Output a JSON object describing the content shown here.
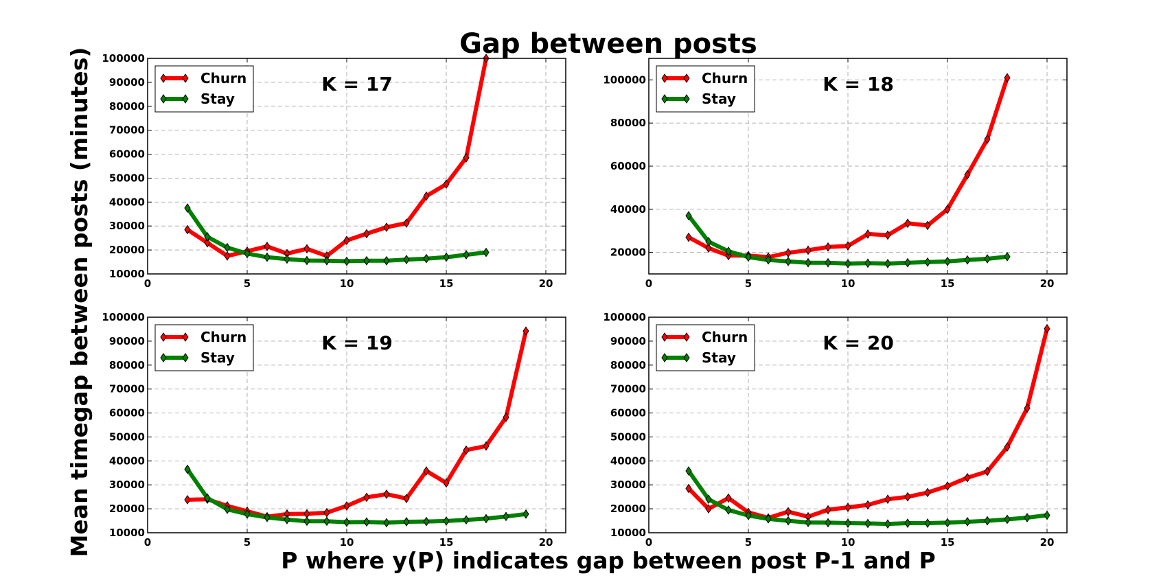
{
  "title": "Gap between posts",
  "xlabel": "P where y(P) indicates gap between post P-1 and P",
  "ylabel": "Mean timegap between posts (minutes)",
  "colors": {
    "churn": "#ff0000",
    "stay": "#008000",
    "grid": "#b0b0b0"
  },
  "chart_data": [
    {
      "type": "line",
      "annotation": "K = 17",
      "xlim": [
        0,
        21
      ],
      "ylim": [
        10000,
        100000
      ],
      "xticks": [
        0,
        5,
        10,
        15,
        20
      ],
      "yticks": [
        10000,
        20000,
        30000,
        40000,
        50000,
        60000,
        70000,
        80000,
        90000,
        100000
      ],
      "grid": true,
      "legend_position": "upper-left",
      "series": [
        {
          "name": "Churn",
          "color": "#ff0000",
          "x": [
            2,
            3,
            4,
            5,
            6,
            7,
            8,
            9,
            10,
            11,
            12,
            13,
            14,
            15,
            16,
            17
          ],
          "y": [
            28500,
            23000,
            17500,
            19500,
            21500,
            18500,
            20500,
            17500,
            24000,
            26800,
            29500,
            31200,
            42500,
            47500,
            58500,
            100000
          ]
        },
        {
          "name": "Stay",
          "color": "#008000",
          "x": [
            2,
            3,
            4,
            5,
            6,
            7,
            8,
            9,
            10,
            11,
            12,
            13,
            14,
            15,
            16,
            17
          ],
          "y": [
            37500,
            25500,
            21000,
            18500,
            17000,
            16200,
            15600,
            15500,
            15300,
            15500,
            15500,
            16000,
            16400,
            17000,
            18000,
            19000
          ]
        }
      ]
    },
    {
      "type": "line",
      "annotation": "K = 18",
      "xlim": [
        0,
        21
      ],
      "ylim": [
        10000,
        110000
      ],
      "xticks": [
        0,
        5,
        10,
        15,
        20
      ],
      "yticks": [
        20000,
        40000,
        60000,
        80000,
        100000
      ],
      "grid": true,
      "legend_position": "upper-left",
      "series": [
        {
          "name": "Churn",
          "color": "#ff0000",
          "x": [
            2,
            3,
            4,
            5,
            6,
            7,
            8,
            9,
            10,
            11,
            12,
            13,
            14,
            15,
            16,
            17,
            18
          ],
          "y": [
            27000,
            22000,
            18500,
            18500,
            17800,
            19800,
            21000,
            22500,
            23000,
            28500,
            28000,
            33500,
            32500,
            40000,
            56000,
            72500,
            101000
          ]
        },
        {
          "name": "Stay",
          "color": "#008000",
          "x": [
            2,
            3,
            4,
            5,
            6,
            7,
            8,
            9,
            10,
            11,
            12,
            13,
            14,
            15,
            16,
            17,
            18
          ],
          "y": [
            37000,
            25000,
            20500,
            17800,
            16500,
            15800,
            15200,
            15200,
            14800,
            15000,
            14800,
            15200,
            15500,
            15800,
            16500,
            17000,
            18000
          ]
        }
      ]
    },
    {
      "type": "line",
      "annotation": "K = 19",
      "xlim": [
        0,
        21
      ],
      "ylim": [
        10000,
        100000
      ],
      "xticks": [
        0,
        5,
        10,
        15,
        20
      ],
      "yticks": [
        10000,
        20000,
        30000,
        40000,
        50000,
        60000,
        70000,
        80000,
        90000,
        100000
      ],
      "grid": true,
      "legend_position": "upper-left",
      "series": [
        {
          "name": "Churn",
          "color": "#ff0000",
          "x": [
            2,
            3,
            4,
            5,
            6,
            7,
            8,
            9,
            10,
            11,
            12,
            13,
            14,
            15,
            16,
            17,
            18,
            19
          ],
          "y": [
            23800,
            24000,
            21200,
            19000,
            16700,
            17800,
            17900,
            18400,
            21200,
            24800,
            26100,
            24300,
            35800,
            30800,
            44500,
            46200,
            58200,
            94200
          ]
        },
        {
          "name": "Stay",
          "color": "#008000",
          "x": [
            2,
            3,
            4,
            5,
            6,
            7,
            8,
            9,
            10,
            11,
            12,
            13,
            14,
            15,
            16,
            17,
            18,
            19
          ],
          "y": [
            36500,
            24500,
            19800,
            17800,
            16400,
            15500,
            14800,
            14800,
            14400,
            14500,
            14200,
            14600,
            14700,
            14900,
            15400,
            15900,
            16800,
            17800
          ]
        }
      ]
    },
    {
      "type": "line",
      "annotation": "K = 20",
      "xlim": [
        0,
        21
      ],
      "ylim": [
        10000,
        100000
      ],
      "xticks": [
        0,
        5,
        10,
        15,
        20
      ],
      "yticks": [
        10000,
        20000,
        30000,
        40000,
        50000,
        60000,
        70000,
        80000,
        90000,
        100000
      ],
      "grid": true,
      "legend_position": "upper-left",
      "series": [
        {
          "name": "Churn",
          "color": "#ff0000",
          "x": [
            2,
            3,
            4,
            5,
            6,
            7,
            8,
            9,
            10,
            11,
            12,
            13,
            14,
            15,
            16,
            17,
            18,
            19,
            20
          ],
          "y": [
            28500,
            20000,
            24500,
            18500,
            16200,
            18800,
            16700,
            19600,
            20600,
            21600,
            24000,
            25000,
            26800,
            29500,
            33000,
            35600,
            45800,
            62000,
            95200
          ]
        },
        {
          "name": "Stay",
          "color": "#008000",
          "x": [
            2,
            3,
            4,
            5,
            6,
            7,
            8,
            9,
            10,
            11,
            12,
            13,
            14,
            15,
            16,
            17,
            18,
            19,
            20
          ],
          "y": [
            35800,
            24000,
            19500,
            17200,
            15800,
            15000,
            14300,
            14200,
            14000,
            13900,
            13700,
            14000,
            14000,
            14200,
            14600,
            15000,
            15600,
            16300,
            17300
          ]
        }
      ]
    }
  ]
}
